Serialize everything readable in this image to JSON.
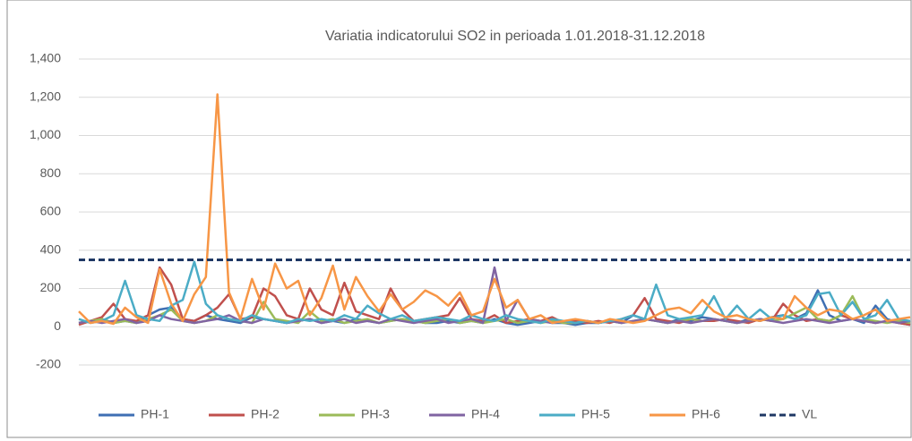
{
  "chart_data": {
    "type": "line",
    "title": "Variatia indicatorului SO2 in perioada 1.01.2018-31.12.2018",
    "ylim": [
      -200,
      1400
    ],
    "yticks": [
      -200,
      0,
      200,
      400,
      600,
      800,
      {
        "value": 1000,
        "label": "1,000"
      },
      {
        "value": 1200,
        "label": "1,200"
      },
      {
        "value": 1400,
        "label": "1,400"
      }
    ],
    "grid": true,
    "series": [
      {
        "name": "PH-1",
        "color": "#3f6fb3",
        "values": [
          20,
          30,
          40,
          20,
          30,
          20,
          60,
          90,
          100,
          40,
          30,
          60,
          40,
          30,
          20,
          50,
          40,
          30,
          20,
          30,
          40,
          20,
          30,
          20,
          40,
          30,
          20,
          30,
          40,
          30,
          20,
          20,
          30,
          20,
          30,
          20,
          40,
          20,
          10,
          20,
          30,
          20,
          20,
          10,
          20,
          20,
          30,
          20,
          60,
          40,
          30,
          20,
          40,
          30,
          50,
          40,
          30,
          20,
          40,
          30,
          50,
          60,
          40,
          70,
          190,
          60,
          30,
          40,
          20,
          110,
          40,
          20,
          10
        ]
      },
      {
        "name": "PH-2",
        "color": "#c0504d",
        "values": [
          10,
          30,
          50,
          120,
          40,
          30,
          60,
          310,
          220,
          40,
          30,
          60,
          100,
          170,
          40,
          50,
          200,
          160,
          60,
          40,
          200,
          90,
          60,
          230,
          80,
          60,
          40,
          200,
          90,
          30,
          40,
          50,
          60,
          150,
          40,
          30,
          60,
          20,
          30,
          40,
          30,
          50,
          20,
          30,
          20,
          30,
          20,
          40,
          60,
          150,
          40,
          30,
          20,
          40,
          30,
          30,
          40,
          30,
          20,
          40,
          30,
          120,
          60,
          30,
          40,
          30,
          60,
          40,
          30,
          20,
          30,
          20,
          10
        ]
      },
      {
        "name": "PH-3",
        "color": "#9bbb59",
        "values": [
          20,
          30,
          40,
          20,
          30,
          20,
          40,
          60,
          90,
          30,
          20,
          30,
          60,
          40,
          30,
          20,
          130,
          40,
          30,
          20,
          80,
          30,
          40,
          20,
          30,
          40,
          20,
          30,
          40,
          30,
          20,
          30,
          40,
          20,
          30,
          20,
          30,
          40,
          20,
          30,
          20,
          30,
          20,
          20,
          30,
          20,
          30,
          20,
          30,
          40,
          30,
          20,
          30,
          40,
          30,
          40,
          30,
          20,
          30,
          40,
          30,
          40,
          70,
          100,
          40,
          30,
          60,
          160,
          40,
          30,
          20,
          30,
          20
        ]
      },
      {
        "name": "PH-4",
        "color": "#8064a2",
        "values": [
          20,
          30,
          20,
          30,
          40,
          20,
          30,
          60,
          40,
          30,
          20,
          30,
          40,
          60,
          30,
          20,
          40,
          30,
          20,
          30,
          40,
          20,
          30,
          40,
          20,
          30,
          20,
          40,
          30,
          20,
          30,
          40,
          20,
          30,
          40,
          20,
          310,
          30,
          140,
          40,
          30,
          20,
          30,
          20,
          30,
          20,
          30,
          20,
          30,
          40,
          30,
          20,
          30,
          20,
          30,
          40,
          30,
          20,
          30,
          40,
          30,
          20,
          30,
          40,
          30,
          20,
          30,
          40,
          30,
          20,
          30,
          20,
          30
        ]
      },
      {
        "name": "PH-5",
        "color": "#4bacc6",
        "values": [
          40,
          20,
          30,
          60,
          240,
          60,
          40,
          30,
          110,
          140,
          340,
          120,
          60,
          40,
          30,
          60,
          40,
          30,
          20,
          40,
          30,
          40,
          30,
          60,
          40,
          110,
          70,
          40,
          60,
          30,
          40,
          50,
          40,
          30,
          60,
          40,
          30,
          60,
          40,
          30,
          20,
          40,
          30,
          20,
          30,
          20,
          30,
          40,
          60,
          40,
          220,
          60,
          40,
          50,
          60,
          160,
          40,
          110,
          40,
          90,
          40,
          60,
          40,
          60,
          170,
          180,
          60,
          130,
          40,
          60,
          140,
          40,
          30
        ]
      },
      {
        "name": "PH-6",
        "color": "#f79646",
        "values": [
          80,
          20,
          30,
          15,
          100,
          50,
          20,
          300,
          120,
          30,
          170,
          260,
          1215,
          180,
          40,
          250,
          90,
          330,
          200,
          240,
          60,
          150,
          320,
          90,
          260,
          160,
          80,
          170,
          90,
          130,
          190,
          160,
          110,
          180,
          60,
          80,
          250,
          100,
          140,
          40,
          60,
          20,
          30,
          40,
          30,
          20,
          40,
          30,
          20,
          30,
          60,
          90,
          100,
          70,
          140,
          80,
          50,
          60,
          40,
          30,
          50,
          40,
          160,
          100,
          60,
          90,
          80,
          40,
          60,
          90,
          30,
          40,
          50
        ]
      }
    ],
    "reference_line": {
      "name": "VL",
      "value": 350,
      "color": "#1f3864"
    }
  }
}
